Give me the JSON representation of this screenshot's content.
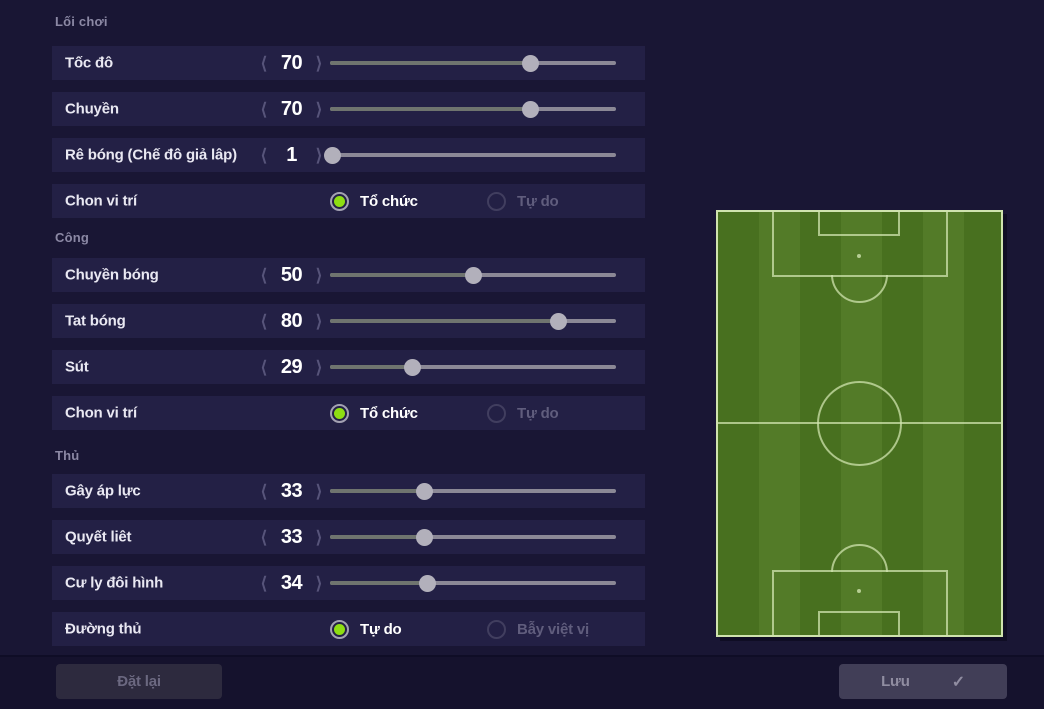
{
  "theme": {
    "page-bg": "#191634",
    "row-bg": "#232045",
    "footer-bg": "#15122d",
    "accent-green": "#8ede12",
    "track-filled": "#6f746f",
    "track-empty": "#8b8896",
    "handle": "#b2b0bb",
    "stripe-dark": "#48701f",
    "stripe-light": "#537b28",
    "pitch-line": "#cfe3ae"
  },
  "icons": {
    "chevron_left": "⟨",
    "chevron_right": "⟩",
    "check": "✓"
  },
  "sections": [
    {
      "title": "Lối chơi",
      "rows": [
        {
          "type": "slider",
          "label": "Tốc đô",
          "value": "70",
          "percent": 70
        },
        {
          "type": "slider",
          "label": "Chuyền",
          "value": "70",
          "percent": 70
        },
        {
          "type": "slider",
          "label": "Rê bóng (Chế đô giả lâp)",
          "value": "1",
          "percent": 1
        },
        {
          "type": "radio",
          "label": "Chon vi trí",
          "options": [
            {
              "label": "Tổ chức",
              "selected": true
            },
            {
              "label": "Tự do",
              "selected": false
            }
          ]
        }
      ]
    },
    {
      "title": "Công",
      "rows": [
        {
          "type": "slider",
          "label": "Chuyền bóng",
          "value": "50",
          "percent": 50
        },
        {
          "type": "slider",
          "label": "Tat bóng",
          "value": "80",
          "percent": 80
        },
        {
          "type": "slider",
          "label": "Sút",
          "value": "29",
          "percent": 29
        },
        {
          "type": "radio",
          "label": "Chon vi trí",
          "options": [
            {
              "label": "Tổ chức",
              "selected": true
            },
            {
              "label": "Tự do",
              "selected": false
            }
          ]
        }
      ]
    },
    {
      "title": "Thủ",
      "rows": [
        {
          "type": "slider",
          "label": "Gây áp lực",
          "value": "33",
          "percent": 33
        },
        {
          "type": "slider",
          "label": "Quyết liêt",
          "value": "33",
          "percent": 33
        },
        {
          "type": "slider",
          "label": "Cư ly đôi hình",
          "value": "34",
          "percent": 34
        },
        {
          "type": "radio",
          "label": "Đường thủ",
          "options": [
            {
              "label": "Tự do",
              "selected": true
            },
            {
              "label": "Bẫy việt vị",
              "selected": false
            }
          ]
        }
      ]
    }
  ],
  "footer": {
    "reset_label": "Đặt lại",
    "save_label": "Lưu"
  }
}
